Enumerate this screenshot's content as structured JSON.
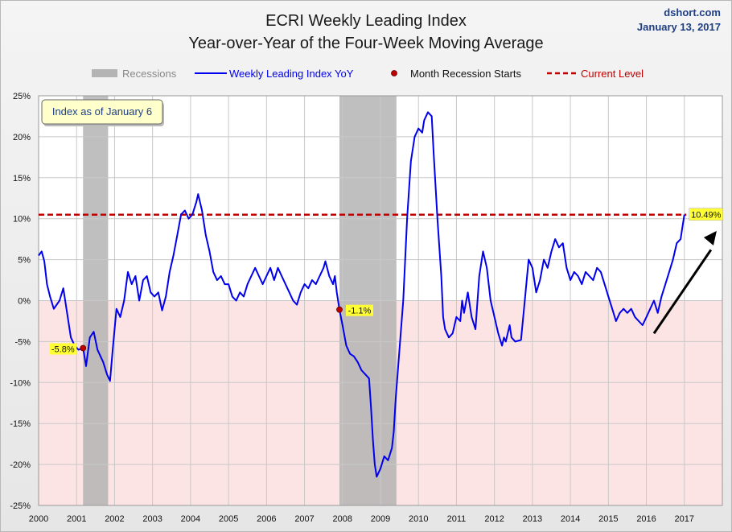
{
  "title_line1": "ECRI Weekly Leading Index",
  "title_line2": "Year-over-Year of the Four-Week Moving Average",
  "source": "dshort.com",
  "date": "January 13, 2017",
  "annotation_box": "Index as of January 6",
  "legend": {
    "recessions": "Recessions",
    "series": "Weekly Leading Index YoY",
    "recession_start": "Month Recession Starts",
    "current": "Current Level"
  },
  "colors": {
    "series": "#0000ee",
    "current": "#c00000",
    "recession": "#b4b4b4",
    "negative_zone": "#fde4e4",
    "marker": "#c00000",
    "label_bg": "#ffff33"
  },
  "chart_data": {
    "type": "line",
    "ylim": [
      -25,
      25
    ],
    "xlim": [
      2000,
      2018
    ],
    "y_ticks": [
      "25%",
      "20%",
      "15%",
      "10%",
      "5%",
      "0%",
      "-5%",
      "-10%",
      "-15%",
      "-20%",
      "-25%"
    ],
    "x_ticks": [
      "2000",
      "2001",
      "2002",
      "2003",
      "2004",
      "2005",
      "2006",
      "2007",
      "2008",
      "2009",
      "2010",
      "2011",
      "2012",
      "2013",
      "2014",
      "2015",
      "2016",
      "2017"
    ],
    "grid": true,
    "legend_position": "top",
    "current_level": 10.49,
    "recessions": [
      [
        2001.17,
        2001.83
      ],
      [
        2007.92,
        2009.42
      ]
    ],
    "recession_starts": [
      {
        "x": 2001.17,
        "y": -5.8,
        "label": "-5.8%"
      },
      {
        "x": 2007.92,
        "y": -1.1,
        "label": "-1.1%"
      }
    ],
    "end_label": "10.49%",
    "series": [
      {
        "name": "Weekly Leading Index YoY",
        "points": [
          [
            2000.0,
            5.5
          ],
          [
            2000.08,
            6.0
          ],
          [
            2000.15,
            4.8
          ],
          [
            2000.22,
            2.0
          ],
          [
            2000.3,
            0.5
          ],
          [
            2000.4,
            -1.0
          ],
          [
            2000.55,
            0.0
          ],
          [
            2000.65,
            1.5
          ],
          [
            2000.75,
            -1.5
          ],
          [
            2000.85,
            -4.5
          ],
          [
            2000.95,
            -5.5
          ],
          [
            2001.05,
            -6.0
          ],
          [
            2001.17,
            -5.8
          ],
          [
            2001.25,
            -8.0
          ],
          [
            2001.35,
            -4.5
          ],
          [
            2001.45,
            -3.8
          ],
          [
            2001.55,
            -6.0
          ],
          [
            2001.7,
            -7.5
          ],
          [
            2001.8,
            -9.0
          ],
          [
            2001.88,
            -9.8
          ],
          [
            2001.95,
            -6.0
          ],
          [
            2002.05,
            -1.0
          ],
          [
            2002.15,
            -2.0
          ],
          [
            2002.25,
            0.0
          ],
          [
            2002.35,
            3.5
          ],
          [
            2002.45,
            2.0
          ],
          [
            2002.55,
            3.0
          ],
          [
            2002.65,
            0.0
          ],
          [
            2002.75,
            2.5
          ],
          [
            2002.85,
            3.0
          ],
          [
            2002.95,
            1.0
          ],
          [
            2003.05,
            0.5
          ],
          [
            2003.15,
            1.0
          ],
          [
            2003.25,
            -1.2
          ],
          [
            2003.35,
            0.5
          ],
          [
            2003.45,
            3.5
          ],
          [
            2003.55,
            5.5
          ],
          [
            2003.65,
            8.0
          ],
          [
            2003.75,
            10.5
          ],
          [
            2003.85,
            11.0
          ],
          [
            2003.95,
            10.0
          ],
          [
            2004.05,
            10.5
          ],
          [
            2004.15,
            12.0
          ],
          [
            2004.2,
            13.0
          ],
          [
            2004.3,
            11.0
          ],
          [
            2004.4,
            8.0
          ],
          [
            2004.5,
            6.0
          ],
          [
            2004.6,
            3.5
          ],
          [
            2004.7,
            2.5
          ],
          [
            2004.8,
            3.0
          ],
          [
            2004.9,
            2.0
          ],
          [
            2005.0,
            2.0
          ],
          [
            2005.1,
            0.5
          ],
          [
            2005.2,
            0.0
          ],
          [
            2005.3,
            1.0
          ],
          [
            2005.4,
            0.5
          ],
          [
            2005.5,
            2.0
          ],
          [
            2005.6,
            3.0
          ],
          [
            2005.7,
            4.0
          ],
          [
            2005.8,
            3.0
          ],
          [
            2005.9,
            2.0
          ],
          [
            2006.0,
            3.0
          ],
          [
            2006.1,
            4.0
          ],
          [
            2006.2,
            2.5
          ],
          [
            2006.3,
            4.0
          ],
          [
            2006.4,
            3.0
          ],
          [
            2006.5,
            2.0
          ],
          [
            2006.6,
            1.0
          ],
          [
            2006.7,
            0.0
          ],
          [
            2006.8,
            -0.5
          ],
          [
            2006.9,
            1.0
          ],
          [
            2007.0,
            2.0
          ],
          [
            2007.1,
            1.5
          ],
          [
            2007.2,
            2.5
          ],
          [
            2007.3,
            2.0
          ],
          [
            2007.4,
            3.0
          ],
          [
            2007.5,
            4.0
          ],
          [
            2007.55,
            4.8
          ],
          [
            2007.65,
            3.0
          ],
          [
            2007.75,
            2.0
          ],
          [
            2007.8,
            3.0
          ],
          [
            2007.85,
            1.0
          ],
          [
            2007.92,
            -1.1
          ],
          [
            2008.0,
            -3.0
          ],
          [
            2008.1,
            -5.5
          ],
          [
            2008.2,
            -6.5
          ],
          [
            2008.3,
            -6.8
          ],
          [
            2008.4,
            -7.5
          ],
          [
            2008.5,
            -8.5
          ],
          [
            2008.6,
            -9.0
          ],
          [
            2008.7,
            -9.5
          ],
          [
            2008.75,
            -13.0
          ],
          [
            2008.8,
            -17.0
          ],
          [
            2008.85,
            -20.0
          ],
          [
            2008.9,
            -21.5
          ],
          [
            2008.95,
            -21.0
          ],
          [
            2009.0,
            -20.5
          ],
          [
            2009.1,
            -19.0
          ],
          [
            2009.2,
            -19.5
          ],
          [
            2009.3,
            -18.0
          ],
          [
            2009.35,
            -16.0
          ],
          [
            2009.4,
            -12.0
          ],
          [
            2009.5,
            -6.0
          ],
          [
            2009.6,
            0.0
          ],
          [
            2009.7,
            10.0
          ],
          [
            2009.8,
            17.0
          ],
          [
            2009.9,
            20.0
          ],
          [
            2010.0,
            21.0
          ],
          [
            2010.1,
            20.5
          ],
          [
            2010.15,
            22.0
          ],
          [
            2010.25,
            23.0
          ],
          [
            2010.35,
            22.5
          ],
          [
            2010.4,
            18.0
          ],
          [
            2010.5,
            10.0
          ],
          [
            2010.6,
            3.0
          ],
          [
            2010.65,
            -2.0
          ],
          [
            2010.7,
            -3.5
          ],
          [
            2010.8,
            -4.5
          ],
          [
            2010.9,
            -4.0
          ],
          [
            2011.0,
            -2.0
          ],
          [
            2011.1,
            -2.5
          ],
          [
            2011.15,
            0.0
          ],
          [
            2011.2,
            -1.5
          ],
          [
            2011.3,
            1.0
          ],
          [
            2011.4,
            -2.0
          ],
          [
            2011.5,
            -3.5
          ],
          [
            2011.6,
            3.0
          ],
          [
            2011.7,
            6.0
          ],
          [
            2011.8,
            4.0
          ],
          [
            2011.9,
            0.0
          ],
          [
            2012.0,
            -2.0
          ],
          [
            2012.1,
            -4.0
          ],
          [
            2012.2,
            -5.5
          ],
          [
            2012.25,
            -4.5
          ],
          [
            2012.3,
            -5.0
          ],
          [
            2012.35,
            -4.0
          ],
          [
            2012.4,
            -3.0
          ],
          [
            2012.45,
            -4.5
          ],
          [
            2012.55,
            -5.0
          ],
          [
            2012.7,
            -4.8
          ],
          [
            2012.8,
            0.0
          ],
          [
            2012.9,
            5.0
          ],
          [
            2013.0,
            4.0
          ],
          [
            2013.1,
            1.0
          ],
          [
            2013.2,
            2.5
          ],
          [
            2013.3,
            5.0
          ],
          [
            2013.4,
            4.0
          ],
          [
            2013.5,
            6.0
          ],
          [
            2013.6,
            7.5
          ],
          [
            2013.7,
            6.5
          ],
          [
            2013.8,
            7.0
          ],
          [
            2013.9,
            4.0
          ],
          [
            2014.0,
            2.5
          ],
          [
            2014.1,
            3.5
          ],
          [
            2014.2,
            3.0
          ],
          [
            2014.3,
            2.0
          ],
          [
            2014.4,
            3.5
          ],
          [
            2014.5,
            3.0
          ],
          [
            2014.6,
            2.5
          ],
          [
            2014.7,
            4.0
          ],
          [
            2014.8,
            3.5
          ],
          [
            2014.9,
            2.0
          ],
          [
            2015.0,
            0.5
          ],
          [
            2015.1,
            -1.0
          ],
          [
            2015.2,
            -2.5
          ],
          [
            2015.3,
            -1.5
          ],
          [
            2015.4,
            -1.0
          ],
          [
            2015.5,
            -1.5
          ],
          [
            2015.6,
            -1.0
          ],
          [
            2015.7,
            -2.0
          ],
          [
            2015.8,
            -2.5
          ],
          [
            2015.9,
            -3.0
          ],
          [
            2016.0,
            -2.0
          ],
          [
            2016.1,
            -1.0
          ],
          [
            2016.2,
            0.0
          ],
          [
            2016.3,
            -1.5
          ],
          [
            2016.4,
            0.5
          ],
          [
            2016.5,
            2.0
          ],
          [
            2016.6,
            3.5
          ],
          [
            2016.7,
            5.0
          ],
          [
            2016.8,
            7.0
          ],
          [
            2016.9,
            7.5
          ],
          [
            2016.95,
            9.0
          ],
          [
            2017.0,
            10.49
          ]
        ]
      }
    ]
  }
}
